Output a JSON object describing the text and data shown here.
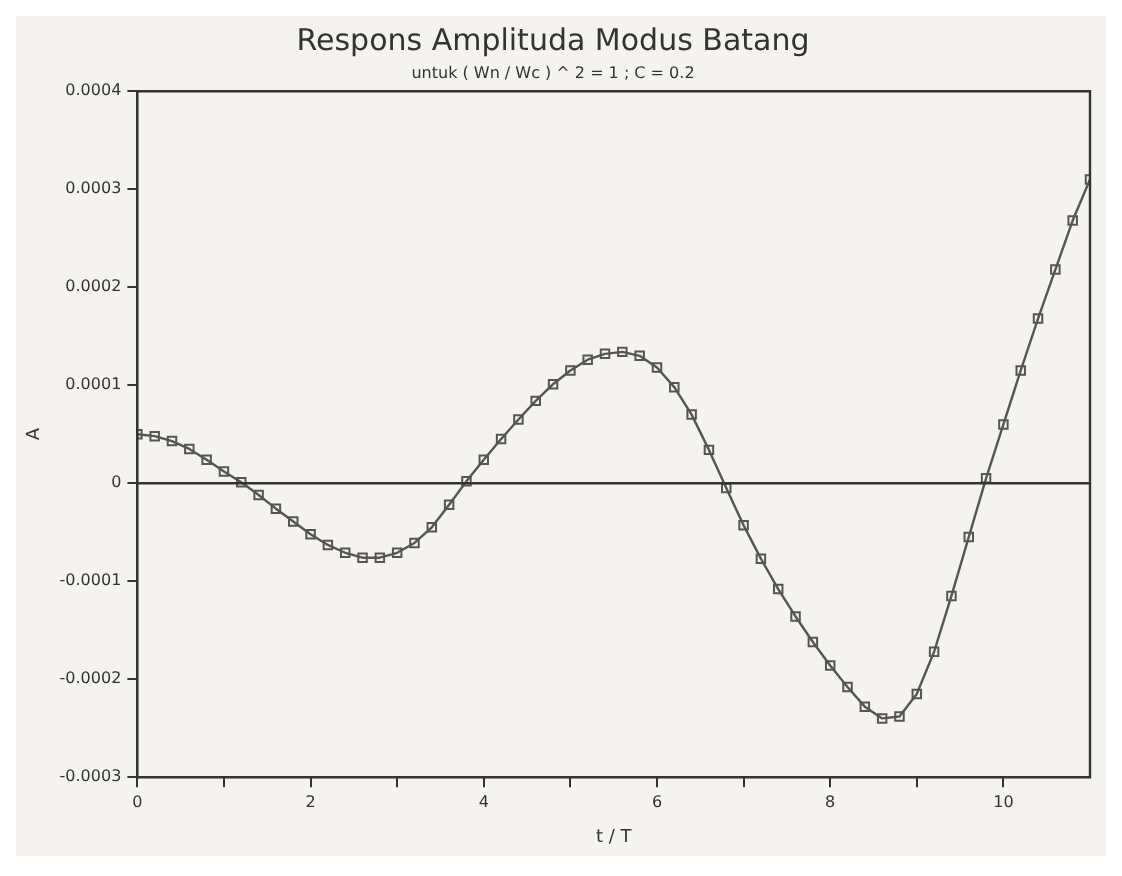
{
  "chart_data": {
    "type": "line",
    "title": "Respons Amplituda Modus Batang",
    "subtitle": "untuk ( Wn / Wc ) ^ 2 = 1 ; C = 0.2",
    "xlabel": "t / T",
    "ylabel": "A",
    "x": [
      0,
      0.2,
      0.4,
      0.6,
      0.8,
      1,
      1.2,
      1.4,
      1.6,
      1.8,
      2,
      2.2,
      2.4,
      2.6,
      2.8,
      3,
      3.2,
      3.4,
      3.6,
      3.8,
      4,
      4.2,
      4.4,
      4.6,
      4.8,
      5,
      5.2,
      5.4,
      5.6,
      5.8,
      6,
      6.2,
      6.4,
      6.6,
      6.8,
      7,
      7.2,
      7.4,
      7.6,
      7.8,
      8,
      8.2,
      8.4,
      8.6,
      8.8,
      9,
      9.2,
      9.4,
      9.6,
      9.8,
      10,
      10.2,
      10.4,
      10.6,
      10.8,
      11
    ],
    "series": [
      {
        "color": "#555555",
        "values": [
          5e-05,
          4.8e-05,
          4.3e-05,
          3.5e-05,
          2.4e-05,
          1.2e-05,
          1e-06,
          -1.2e-05,
          -2.6e-05,
          -3.9e-05,
          -5.2e-05,
          -6.3e-05,
          -7.1e-05,
          -7.6e-05,
          -7.6e-05,
          -7.1e-05,
          -6.1e-05,
          -4.5e-05,
          -2.2e-05,
          2e-06,
          2.4e-05,
          4.5e-05,
          6.5e-05,
          8.4e-05,
          0.000101,
          0.000115,
          0.000126,
          0.000132,
          0.000134,
          0.00013,
          0.000118,
          9.8e-05,
          7e-05,
          3.4e-05,
          -5e-06,
          -4.3e-05,
          -7.7e-05,
          -0.000108,
          -0.000136,
          -0.000162,
          -0.000186,
          -0.000208,
          -0.000228,
          -0.00024,
          -0.000238,
          -0.000215,
          -0.000172,
          -0.000115,
          -5.5e-05,
          5e-06,
          6e-05,
          0.000115,
          0.000168,
          0.000218,
          0.000268,
          0.00031
        ]
      }
    ],
    "xlim": [
      0,
      11
    ],
    "xticks": [
      0,
      {
        "value": 1,
        "label": null
      },
      2,
      {
        "value": 3,
        "label": null
      },
      4,
      {
        "value": 5,
        "label": null
      },
      6,
      {
        "value": 7,
        "label": null
      },
      8,
      {
        "value": 9,
        "label": null
      },
      10
    ],
    "ylim": [
      -0.0003,
      0.0004
    ],
    "yticks": [
      {
        "value": -0.0003,
        "label": "-0.0003"
      },
      {
        "value": -0.0002,
        "label": "-0.0002"
      },
      {
        "value": -0.0001,
        "label": "-0.0001"
      },
      0,
      {
        "value": 0.0001,
        "label": "0.0001"
      },
      {
        "value": 0.0002,
        "label": "0.0002"
      },
      {
        "value": 0.0003,
        "label": "0.0003"
      },
      {
        "value": 0.0004,
        "label": "0.0004"
      }
    ],
    "ref_lines": [
      {
        "axis": "y",
        "value": 0,
        "color": "#333333"
      }
    ],
    "grid": false,
    "legend": false,
    "marker": "square",
    "line_style": "solid"
  }
}
